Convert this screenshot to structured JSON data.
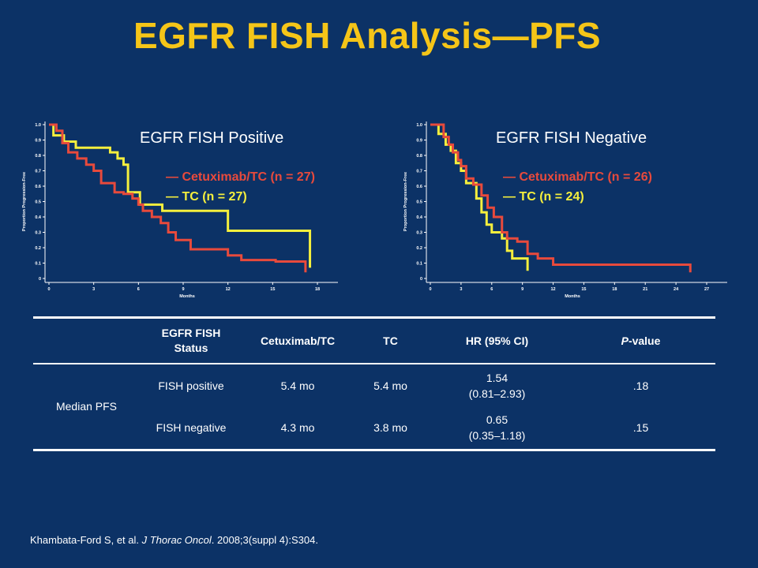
{
  "slide": {
    "title": "EGFR FISH Analysis—PFS",
    "citation": {
      "authors": "Khambata-Ford S, et al. ",
      "journal": "J Thorac Oncol",
      "rest": ". 2008;3(suppl 4):S304."
    }
  },
  "colors": {
    "background": "#0c3266",
    "title": "#f5c518",
    "cetuximab": "#e84a3c",
    "tc": "#f5ef3d"
  },
  "chart_data": [
    {
      "type": "line",
      "step": true,
      "title": "EGFR FISH Positive",
      "xlabel": "Months",
      "ylabel": "Proportion Progression-Free",
      "xlim": [
        0,
        18
      ],
      "ylim": [
        0,
        1
      ],
      "xticks": [
        "0",
        "3",
        "6",
        "9",
        "12",
        "15",
        "18"
      ],
      "yticks": [
        "0",
        "0.1",
        "0.2",
        "0.3",
        "0.4",
        "0.5",
        "0.6",
        "0.7",
        "0.8",
        "0.9",
        "1.0"
      ],
      "legend": [
        "— Cetuximab/TC (n = 27)",
        "— TC (n = 27)"
      ],
      "series": [
        {
          "name": "Cetuximab/TC (n = 27)",
          "color": "#e84a3c",
          "x": [
            0,
            0.5,
            0.9,
            1.3,
            1.9,
            2.5,
            3.0,
            3.5,
            4.4,
            5.0,
            5.6,
            6.0,
            6.3,
            6.9,
            7.5,
            8.0,
            8.5,
            9.5,
            12.0,
            12.9,
            14.5,
            15.2,
            17.2,
            17.2
          ],
          "y": [
            1.0,
            0.96,
            0.88,
            0.82,
            0.78,
            0.74,
            0.7,
            0.62,
            0.56,
            0.55,
            0.52,
            0.48,
            0.44,
            0.4,
            0.36,
            0.3,
            0.25,
            0.19,
            0.15,
            0.12,
            0.12,
            0.11,
            0.11,
            0.04
          ]
        },
        {
          "name": "TC (n = 27)",
          "color": "#f5ef3d",
          "x": [
            0,
            0.3,
            1.0,
            1.8,
            3.6,
            4.1,
            4.6,
            5.0,
            5.3,
            6.1,
            7.6,
            12.0,
            17.5,
            17.5
          ],
          "y": [
            1.0,
            0.93,
            0.89,
            0.85,
            0.85,
            0.82,
            0.78,
            0.74,
            0.56,
            0.48,
            0.44,
            0.31,
            0.31,
            0.07
          ]
        }
      ]
    },
    {
      "type": "line",
      "step": true,
      "title": "EGFR FISH Negative",
      "xlabel": "Months",
      "ylabel": "Proportion Progression-Free",
      "xlim": [
        0,
        27
      ],
      "ylim": [
        0,
        1
      ],
      "xticks": [
        "0",
        "3",
        "6",
        "9",
        "12",
        "15",
        "18",
        "21",
        "24",
        "27"
      ],
      "yticks": [
        "0",
        "0.1",
        "0.2",
        "0.3",
        "0.4",
        "0.5",
        "0.6",
        "0.7",
        "0.8",
        "0.9",
        "1.0"
      ],
      "legend": [
        "— Cetuximab/TC (n = 26)",
        "— TC (n = 24)"
      ],
      "series": [
        {
          "name": "Cetuximab/TC (n = 26)",
          "color": "#e84a3c",
          "x": [
            0,
            1.3,
            1.8,
            2.2,
            2.7,
            3.0,
            3.5,
            4.2,
            5.0,
            5.6,
            6.2,
            7.0,
            7.5,
            8.5,
            9.5,
            10.5,
            12.0,
            16.0,
            20.0,
            25.4,
            25.4
          ],
          "y": [
            1.0,
            0.92,
            0.87,
            0.82,
            0.77,
            0.73,
            0.65,
            0.61,
            0.54,
            0.46,
            0.4,
            0.3,
            0.26,
            0.24,
            0.16,
            0.13,
            0.09,
            0.09,
            0.09,
            0.09,
            0.04
          ]
        },
        {
          "name": "TC (n = 24)",
          "color": "#f5ef3d",
          "x": [
            0,
            0.8,
            1.5,
            2.0,
            2.5,
            3.0,
            3.5,
            4.5,
            5.0,
            5.5,
            6.0,
            7.0,
            7.5,
            8.0,
            9.5,
            9.5
          ],
          "y": [
            1.0,
            0.94,
            0.87,
            0.83,
            0.75,
            0.7,
            0.62,
            0.52,
            0.43,
            0.35,
            0.3,
            0.26,
            0.18,
            0.13,
            0.05,
            0.05
          ]
        }
      ]
    }
  ],
  "table": {
    "headers": [
      "",
      "EGFR FISH Status",
      "Cetuximab/TC",
      "TC",
      "HR (95% CI)",
      "P-value"
    ],
    "header_p_italic": "P",
    "header_p_rest": "-value",
    "group_label": "Median PFS",
    "rows": [
      {
        "status": "FISH positive",
        "cetuximab": "5.4 mo",
        "tc": "5.4 mo",
        "hr": "1.54",
        "ci": "(0.81–2.93)",
        "p": ".18"
      },
      {
        "status": "FISH negative",
        "cetuximab": "4.3 mo",
        "tc": "3.8 mo",
        "hr": "0.65",
        "ci": "(0.35–1.18)",
        "p": ".15"
      }
    ]
  }
}
